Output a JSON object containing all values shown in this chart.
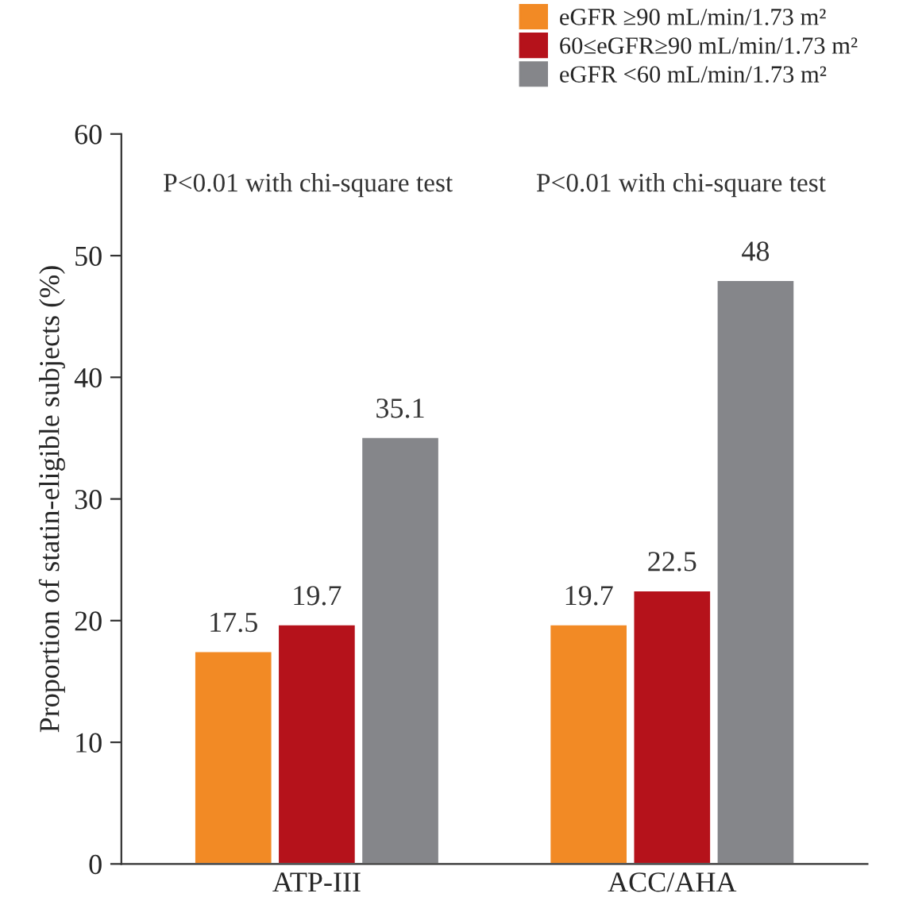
{
  "chart_data": {
    "type": "bar",
    "ylabel": "Proportion of statin-eligible subjects (%)",
    "categories": [
      "ATP-III",
      "ACC/AHA"
    ],
    "series": [
      {
        "name": "eGFR ≥90 mL/min/1.73 m²",
        "color": "#f28a25",
        "values": [
          17.5,
          19.7
        ]
      },
      {
        "name": "60≤eGFR≥90 mL/min/1.73 m²",
        "color": "#b5121b",
        "values": [
          19.7,
          22.5
        ]
      },
      {
        "name": "eGFR <60 mL/min/1.73 m²",
        "color": "#85868a",
        "values": [
          35.1,
          48
        ]
      }
    ],
    "ylim": [
      0,
      60
    ],
    "yticks": [
      0,
      10,
      20,
      30,
      40,
      50,
      60
    ],
    "data_labels": true,
    "legend": "top right",
    "grid": false,
    "annotations": [
      "P<0.01 with chi-square test",
      "P<0.01 with chi-square test"
    ]
  }
}
